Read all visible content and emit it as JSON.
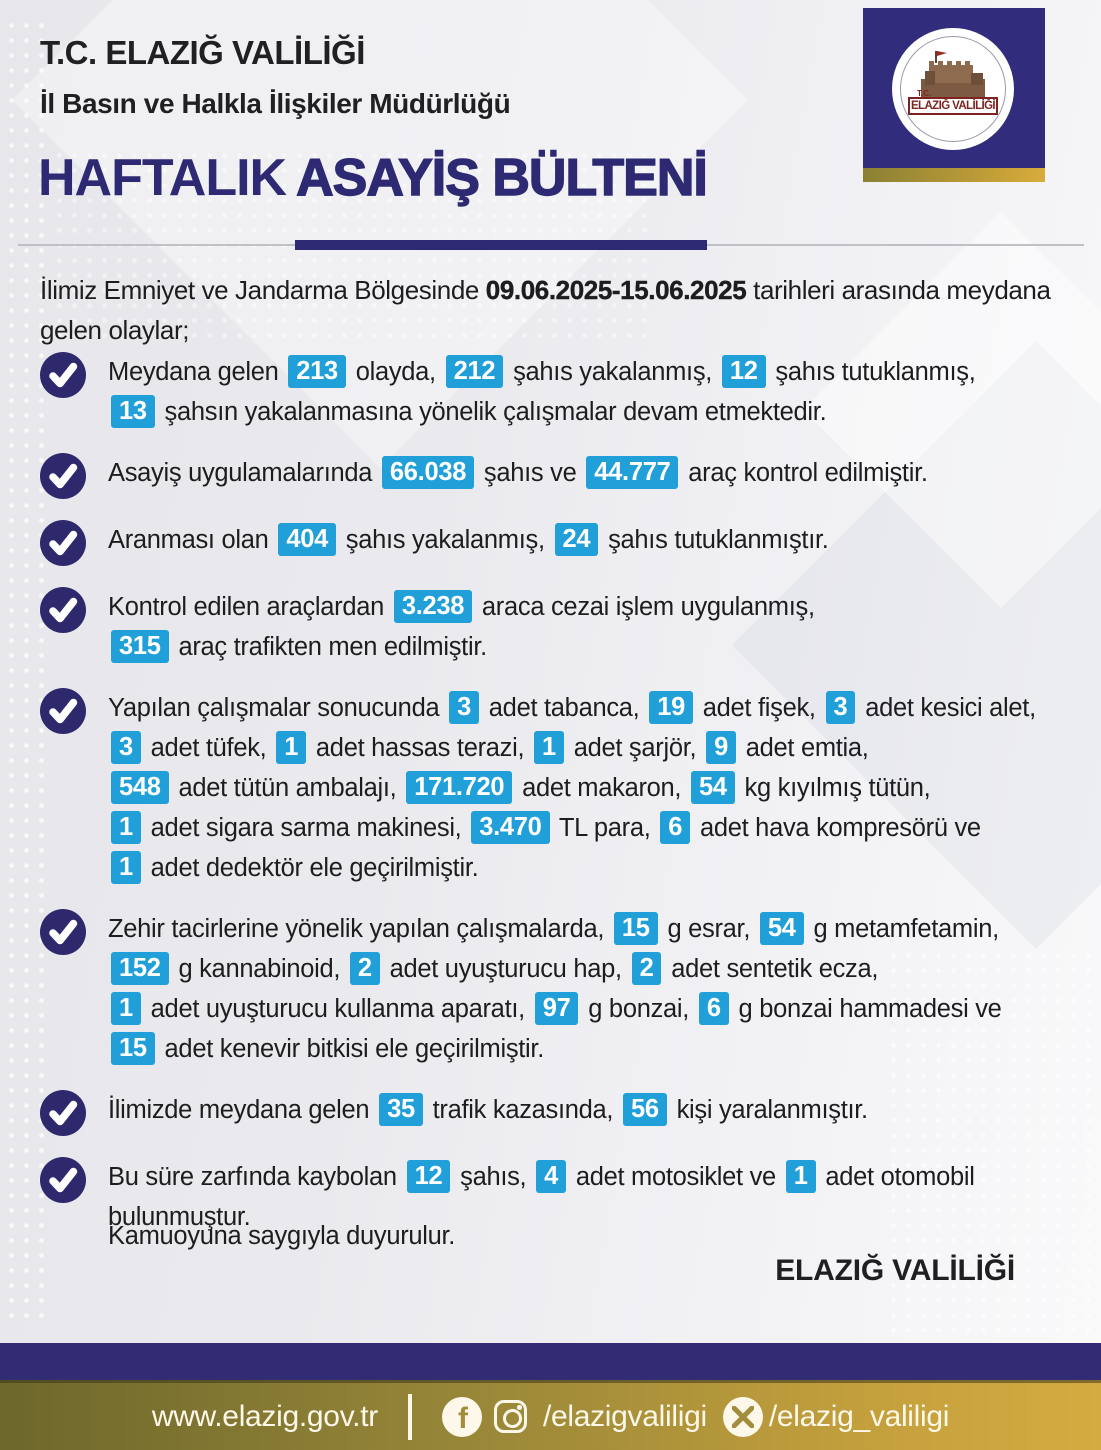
{
  "colors": {
    "navy": "#2d2a73",
    "logo_navy": "#312c7c",
    "check_circle": "#2e296d",
    "highlight_blue": "#209fd8",
    "footer_navy": "#322c75",
    "footer_gold_left": "#6d672b",
    "footer_gold_right": "#d4ab41",
    "logo_red": "#7e2420",
    "body_text": "#1d1d1f",
    "footer_text": "#fdf8ea"
  },
  "header": {
    "org": "T.C. ELAZIĞ VALİLİĞİ",
    "dept": "İl Basın ve Halkla İlişkiler Müdürlüğü",
    "title_light": "HAFTALIK",
    "title_bold": "ASAYİŞ BÜLTENİ"
  },
  "logo": {
    "tc": "T.C.",
    "label": "ELAZIĞ VALİLİĞİ"
  },
  "intro": {
    "pre": "İlimiz Emniyet ve Jandarma Bölgesinde ",
    "date": "09.06.2025-15.06.2025",
    "post": " tarihleri arasında meydana gelen olaylar;"
  },
  "bullets": [
    {
      "segments": [
        {
          "t": "Meydana gelen "
        },
        {
          "h": "213"
        },
        {
          "t": " olayda, "
        },
        {
          "h": "212"
        },
        {
          "t": " şahıs yakalanmış, "
        },
        {
          "h": "12"
        },
        {
          "t": " şahıs tutuklanmış,"
        },
        {
          "br": true
        },
        {
          "h": "13"
        },
        {
          "t": " şahsın yakalanmasına yönelik çalışmalar devam etmektedir."
        }
      ]
    },
    {
      "segments": [
        {
          "t": "Asayiş uygulamalarında "
        },
        {
          "h": "66.038"
        },
        {
          "t": " şahıs ve "
        },
        {
          "h": "44.777"
        },
        {
          "t": " araç kontrol edilmiştir."
        }
      ]
    },
    {
      "segments": [
        {
          "t": "Aranması olan "
        },
        {
          "h": "404"
        },
        {
          "t": " şahıs yakalanmış, "
        },
        {
          "h": "24"
        },
        {
          "t": " şahıs tutuklanmıştır."
        }
      ]
    },
    {
      "segments": [
        {
          "t": "Kontrol edilen araçlardan "
        },
        {
          "h": "3.238"
        },
        {
          "t": " araca cezai işlem uygulanmış,"
        },
        {
          "br": true
        },
        {
          "h": "315"
        },
        {
          "t": " araç trafikten men edilmiştir."
        }
      ]
    },
    {
      "segments": [
        {
          "t": "Yapılan çalışmalar sonucunda "
        },
        {
          "h": "3"
        },
        {
          "t": " adet tabanca, "
        },
        {
          "h": "19"
        },
        {
          "t": " adet fişek, "
        },
        {
          "h": "3"
        },
        {
          "t": " adet kesici alet,"
        },
        {
          "br": true
        },
        {
          "h": "3"
        },
        {
          "t": " adet tüfek, "
        },
        {
          "h": "1"
        },
        {
          "t": " adet hassas terazi, "
        },
        {
          "h": "1"
        },
        {
          "t": " adet şarjör, "
        },
        {
          "h": "9"
        },
        {
          "t": " adet emtia,"
        },
        {
          "br": true
        },
        {
          "h": "548"
        },
        {
          "t": " adet tütün ambalajı, "
        },
        {
          "h": "171.720"
        },
        {
          "t": " adet makaron, "
        },
        {
          "h": "54"
        },
        {
          "t": " kg kıyılmış tütün,"
        },
        {
          "br": true
        },
        {
          "h": "1"
        },
        {
          "t": " adet sigara sarma makinesi, "
        },
        {
          "h": "3.470"
        },
        {
          "t": " TL para, "
        },
        {
          "h": "6"
        },
        {
          "t": " adet hava kompresörü ve"
        },
        {
          "br": true
        },
        {
          "h": "1"
        },
        {
          "t": " adet dedektör ele geçirilmiştir."
        }
      ]
    },
    {
      "segments": [
        {
          "t": "Zehir tacirlerine yönelik yapılan çalışmalarda, "
        },
        {
          "h": "15"
        },
        {
          "t": " g esrar, "
        },
        {
          "h": "54"
        },
        {
          "t": " g metamfetamin,"
        },
        {
          "br": true
        },
        {
          "h": "152"
        },
        {
          "t": " g kannabinoid, "
        },
        {
          "h": "2"
        },
        {
          "t": " adet uyuşturucu hap, "
        },
        {
          "h": "2"
        },
        {
          "t": " adet sentetik ecza,"
        },
        {
          "br": true
        },
        {
          "h": "1"
        },
        {
          "t": " adet uyuşturucu kullanma aparatı, "
        },
        {
          "h": "97"
        },
        {
          "t": " g bonzai, "
        },
        {
          "h": "6"
        },
        {
          "t": " g bonzai hammadesi ve"
        },
        {
          "br": true
        },
        {
          "h": "15"
        },
        {
          "t": " adet kenevir bitkisi ele geçirilmiştir."
        }
      ]
    },
    {
      "segments": [
        {
          "t": "İlimizde meydana gelen "
        },
        {
          "h": "35"
        },
        {
          "t": " trafik kazasında, "
        },
        {
          "h": "56"
        },
        {
          "t": " kişi yaralanmıştır."
        }
      ]
    },
    {
      "segments": [
        {
          "t": "Bu süre zarfında kaybolan "
        },
        {
          "h": "12"
        },
        {
          "t": " şahıs, "
        },
        {
          "h": "4"
        },
        {
          "t": " adet motosiklet ve "
        },
        {
          "h": "1"
        },
        {
          "t": " adet otomobil"
        },
        {
          "br": true
        },
        {
          "t": "bulunmuştur."
        }
      ]
    }
  ],
  "closing": "Kamuoyuna saygıyla duyurulur.",
  "signature": "ELAZIĞ VALİLİĞİ",
  "footer": {
    "website": "www.elazig.gov.tr",
    "facebook_letter": "f",
    "social_handle": "/elazigvaliligi",
    "x_handle": "/elazig_valiligi"
  }
}
